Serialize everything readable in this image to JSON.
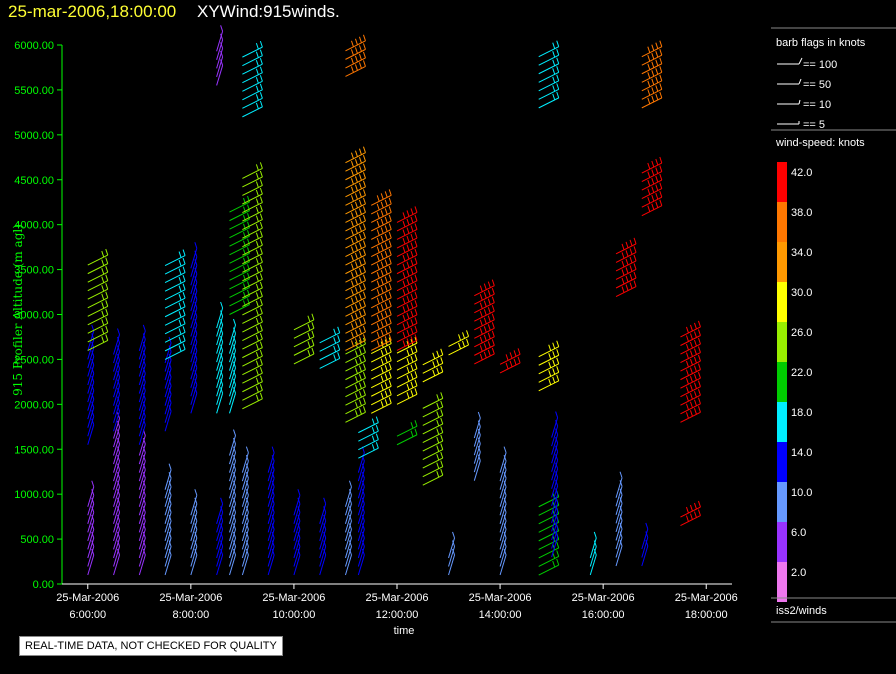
{
  "header": {
    "time": "25-mar-2006,18:00:00",
    "title": "XYWind:915winds."
  },
  "disclaimer": "REAL-TIME DATA, NOT CHECKED FOR QUALITY",
  "colors": {
    "axis_text": "#00ff00",
    "fg": "#ffffff",
    "bg": "#000000"
  },
  "legend": {
    "flags_title": "barb flags in knots",
    "flags": [
      "== 100",
      "== 50",
      "== 10",
      "== 5"
    ],
    "speed_title": "wind-speed: knots",
    "speed_scale": [
      {
        "label": "42.0",
        "color": "#ff0000"
      },
      {
        "label": "38.0",
        "color": "#ff7700"
      },
      {
        "label": "34.0",
        "color": "#ff9900"
      },
      {
        "label": "30.0",
        "color": "#ffff00"
      },
      {
        "label": "26.0",
        "color": "#99ee00"
      },
      {
        "label": "22.0",
        "color": "#00cc00"
      },
      {
        "label": "18.0",
        "color": "#00eeff"
      },
      {
        "label": "14.0",
        "color": "#0000ff"
      },
      {
        "label": "10.0",
        "color": "#6699ff"
      },
      {
        "label": "6.0",
        "color": "#9933ff"
      },
      {
        "label": "2.0",
        "color": "#ee77ee"
      }
    ],
    "footer": "iss2/winds"
  },
  "chart_data": {
    "type": "wind barbs",
    "ylabel": "915 Profiler Altitude (m agl)",
    "xlabel": "time",
    "ylim": [
      0,
      6000
    ],
    "y_ticks": [
      "0.00",
      "500.00",
      "1000.00",
      "1500.00",
      "2000.00",
      "2500.00",
      "3000.00",
      "3500.00",
      "4000.00",
      "4500.00",
      "5000.00",
      "5500.00",
      "6000.00"
    ],
    "x_range": [
      "05:30",
      "18:30"
    ],
    "x_ticks": [
      {
        "t": "06:00",
        "date": "25-Mar-2006",
        "time": "6:00:00"
      },
      {
        "t": "08:00",
        "date": "25-Mar-2006",
        "time": "8:00:00"
      },
      {
        "t": "10:00",
        "date": "25-Mar-2006",
        "time": "10:00:00"
      },
      {
        "t": "12:00",
        "date": "25-Mar-2006",
        "time": "12:00:00"
      },
      {
        "t": "14:00",
        "date": "25-Mar-2006",
        "time": "14:00:00"
      },
      {
        "t": "16:00",
        "date": "25-Mar-2006",
        "time": "16:00:00"
      },
      {
        "t": "18:00",
        "date": "25-Mar-2006",
        "time": "18:00:00"
      }
    ],
    "columns": [
      {
        "t": "06:00",
        "segments": [
          {
            "h0": 100,
            "h1": 950,
            "spd": 6
          },
          {
            "h0": 1550,
            "h1": 2600,
            "spd": 12
          },
          {
            "h0": 2600,
            "h1": 3550,
            "spd": 24
          }
        ]
      },
      {
        "t": "06:30",
        "segments": [
          {
            "h0": 100,
            "h1": 1700,
            "spd": 7
          },
          {
            "h0": 1700,
            "h1": 2600,
            "spd": 14
          }
        ]
      },
      {
        "t": "07:00",
        "segments": [
          {
            "h0": 100,
            "h1": 1500,
            "spd": 7
          },
          {
            "h0": 1550,
            "h1": 2600,
            "spd": 13
          }
        ]
      },
      {
        "t": "07:30",
        "segments": [
          {
            "h0": 100,
            "h1": 1100,
            "spd": 8
          },
          {
            "h0": 1700,
            "h1": 2500,
            "spd": 14
          },
          {
            "h0": 2500,
            "h1": 3550,
            "spd": 19
          }
        ]
      },
      {
        "t": "08:00",
        "segments": [
          {
            "h0": 100,
            "h1": 800,
            "spd": 10
          },
          {
            "h0": 1900,
            "h1": 3550,
            "spd": 15
          }
        ]
      },
      {
        "t": "08:30",
        "segments": [
          {
            "h0": 100,
            "h1": 700,
            "spd": 12
          },
          {
            "h0": 1900,
            "h1": 2900,
            "spd": 16
          },
          {
            "h0": 5550,
            "h1": 5950,
            "spd": 6
          }
        ]
      },
      {
        "t": "08:45",
        "segments": [
          {
            "h0": 100,
            "h1": 1500,
            "spd": 10
          },
          {
            "h0": 1900,
            "h1": 2700,
            "spd": 17
          },
          {
            "h0": 3000,
            "h1": 4200,
            "spd": 20
          }
        ]
      },
      {
        "t": "09:00",
        "segments": [
          {
            "h0": 100,
            "h1": 1300,
            "spd": 11
          },
          {
            "h0": 1950,
            "h1": 4600,
            "spd": 24
          },
          {
            "h0": 5200,
            "h1": 5950,
            "spd": 18
          }
        ]
      },
      {
        "t": "09:30",
        "segments": [
          {
            "h0": 100,
            "h1": 1300,
            "spd": 13
          }
        ]
      },
      {
        "t": "10:00",
        "segments": [
          {
            "h0": 100,
            "h1": 800,
            "spd": 13
          },
          {
            "h0": 2450,
            "h1": 2900,
            "spd": 24
          }
        ]
      },
      {
        "t": "10:30",
        "segments": [
          {
            "h0": 100,
            "h1": 700,
            "spd": 14
          },
          {
            "h0": 2400,
            "h1": 2700,
            "spd": 19
          }
        ]
      },
      {
        "t": "11:00",
        "segments": [
          {
            "h0": 100,
            "h1": 900,
            "spd": 8
          },
          {
            "h0": 1800,
            "h1": 2600,
            "spd": 25
          },
          {
            "h0": 2600,
            "h1": 4700,
            "spd": 35
          },
          {
            "h0": 5650,
            "h1": 5950,
            "spd": 36
          }
        ]
      },
      {
        "t": "11:15",
        "segments": [
          {
            "h0": 100,
            "h1": 1300,
            "spd": 13
          },
          {
            "h0": 1400,
            "h1": 1700,
            "spd": 19
          }
        ]
      },
      {
        "t": "11:30",
        "segments": [
          {
            "h0": 1900,
            "h1": 2600,
            "spd": 29
          },
          {
            "h0": 2600,
            "h1": 4300,
            "spd": 38
          }
        ]
      },
      {
        "t": "12:00",
        "segments": [
          {
            "h0": 1550,
            "h1": 1700,
            "spd": 22
          },
          {
            "h0": 2000,
            "h1": 2600,
            "spd": 31
          },
          {
            "h0": 2600,
            "h1": 4100,
            "spd": 40
          }
        ]
      },
      {
        "t": "12:30",
        "segments": [
          {
            "h0": 1100,
            "h1": 2000,
            "spd": 24
          },
          {
            "h0": 2250,
            "h1": 2450,
            "spd": 29
          }
        ]
      },
      {
        "t": "13:00",
        "segments": [
          {
            "h0": 100,
            "h1": 300,
            "spd": 8
          },
          {
            "h0": 2550,
            "h1": 2700,
            "spd": 30
          }
        ]
      },
      {
        "t": "13:30",
        "segments": [
          {
            "h0": 1150,
            "h1": 1700,
            "spd": 8
          },
          {
            "h0": 2450,
            "h1": 3250,
            "spd": 40
          }
        ]
      },
      {
        "t": "14:00",
        "segments": [
          {
            "h0": 100,
            "h1": 1300,
            "spd": 8
          },
          {
            "h0": 2350,
            "h1": 2500,
            "spd": 41
          }
        ]
      },
      {
        "t": "14:45",
        "segments": [
          {
            "h0": 100,
            "h1": 900,
            "spd": 20
          },
          {
            "h0": 2150,
            "h1": 2600,
            "spd": 30
          },
          {
            "h0": 5300,
            "h1": 5950,
            "spd": 18
          }
        ]
      },
      {
        "t": "15:00",
        "segments": [
          {
            "h0": 300,
            "h1": 1700,
            "spd": 13
          }
        ]
      },
      {
        "t": "15:45",
        "segments": [
          {
            "h0": 100,
            "h1": 300,
            "spd": 16
          }
        ]
      },
      {
        "t": "16:15",
        "segments": [
          {
            "h0": 200,
            "h1": 1000,
            "spd": 8
          },
          {
            "h0": 3200,
            "h1": 3700,
            "spd": 41
          }
        ]
      },
      {
        "t": "16:45",
        "segments": [
          {
            "h0": 200,
            "h1": 450,
            "spd": 14
          },
          {
            "h0": 4100,
            "h1": 4600,
            "spd": 41
          },
          {
            "h0": 5300,
            "h1": 5950,
            "spd": 36
          }
        ]
      },
      {
        "t": "17:30",
        "segments": [
          {
            "h0": 650,
            "h1": 800,
            "spd": 41
          },
          {
            "h0": 1800,
            "h1": 2750,
            "spd": 41
          }
        ]
      }
    ]
  }
}
